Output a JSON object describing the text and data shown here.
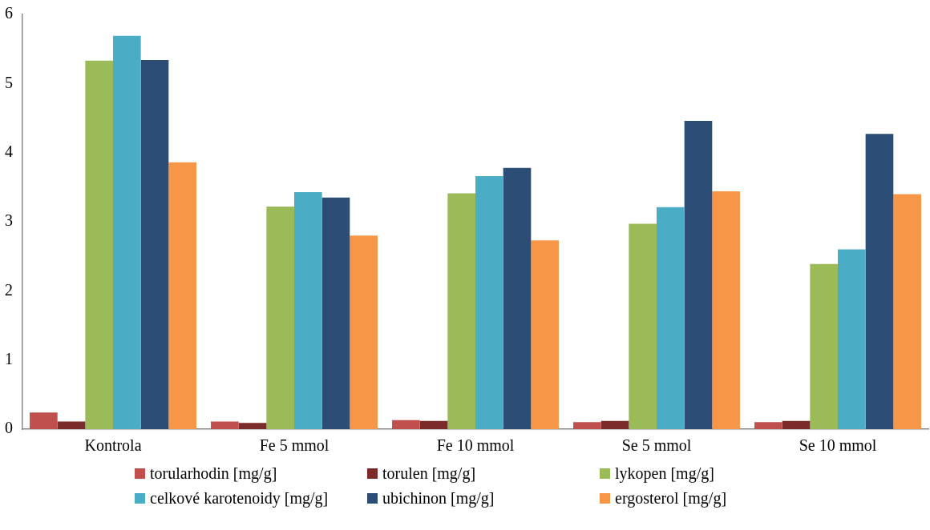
{
  "chart_data": {
    "type": "bar",
    "categories": [
      "Kontrola",
      "Fe 5 mmol",
      "Fe 10 mmol",
      "Se 5 mmol",
      "Se 10 mmol"
    ],
    "series": [
      {
        "name": "torularhodin [mg/g]",
        "color": "#c0504d",
        "values": [
          0.24,
          0.11,
          0.13,
          0.1,
          0.1
        ]
      },
      {
        "name": "torulen [mg/g]",
        "color": "#7b2c2a",
        "values": [
          0.11,
          0.09,
          0.12,
          0.12,
          0.12
        ]
      },
      {
        "name": "lykopen [mg/g]",
        "color": "#9bbb59",
        "values": [
          5.33,
          3.22,
          3.41,
          2.97,
          2.39
        ]
      },
      {
        "name": "celkové karotenoidy [mg/g]",
        "color": "#4bacc6",
        "values": [
          5.69,
          3.43,
          3.66,
          3.21,
          2.6
        ]
      },
      {
        "name": "ubichinon [mg/g]",
        "color": "#2c4d75",
        "values": [
          5.34,
          3.35,
          3.78,
          4.46,
          4.27
        ]
      },
      {
        "name": "ergosterol [mg/g]",
        "color": "#f79646",
        "values": [
          3.86,
          2.8,
          2.73,
          3.44,
          3.4
        ]
      }
    ],
    "ylim": [
      0,
      6
    ],
    "yticks": [
      0,
      1,
      2,
      3,
      4,
      5,
      6
    ],
    "grid": false,
    "legend": "bottom"
  }
}
